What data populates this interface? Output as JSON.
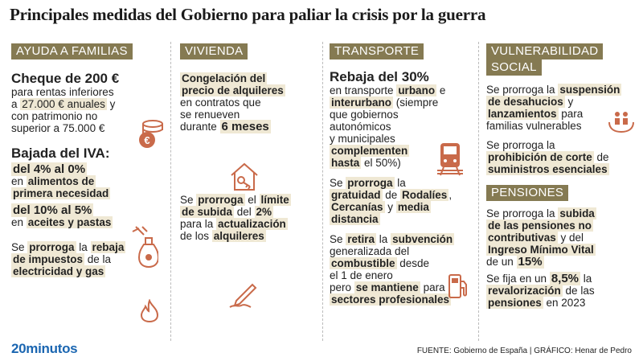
{
  "title": "Principales medidas del Gobierno para paliar la crisis por la guerra",
  "col1": {
    "header": "AYUDA A FAMILIAS",
    "cheque_title": "Cheque de 200 €",
    "cheque_l1": "para rentas inferiores",
    "cheque_l2a": "a ",
    "cheque_l2b": "27.000 € anuales",
    "cheque_l2c": " y",
    "cheque_l3": "con patrimonio no",
    "cheque_l4": "superior a 75.000 €",
    "iva_title": "Bajada del IVA:",
    "iva_a_hl": "del 4% al 0%",
    "iva_a_l2": "en ",
    "iva_a_l2b": "alimentos de",
    "iva_a_l3": "primera necesidad",
    "iva_b_hl": "del 10% al 5%",
    "iva_b_l2a": "en ",
    "iva_b_l2b": "aceites y pastas",
    "rebaja_l1a": "Se ",
    "rebaja_l1b": "prorroga",
    "rebaja_l1c": " la ",
    "rebaja_l1d": "rebaja",
    "rebaja_l2a": "de impuestos",
    "rebaja_l2b": " de la",
    "rebaja_l3": "electricidad y gas"
  },
  "col2": {
    "header": "VIVIENDA",
    "cong_l1": "Congelación del",
    "cong_l2": "precio de alquileres",
    "cong_l3": "en contratos que",
    "cong_l4": "se renueven",
    "cong_l5a": "durante ",
    "cong_l5b": "6 meses",
    "lim_l1a": "Se ",
    "lim_l1b": "prorroga",
    "lim_l1c": " el ",
    "lim_l1d": "límite",
    "lim_l2a": "de subida",
    "lim_l2b": " del ",
    "lim_l2c": "2%",
    "lim_l3a": "para la ",
    "lim_l3b": "actualización",
    "lim_l4a": "de los ",
    "lim_l4b": "alquileres"
  },
  "col3": {
    "header": "TRANSPORTE",
    "reb_title": "Rebaja del 30%",
    "reb_l1a": "en transporte ",
    "reb_l1b": "urbano",
    "reb_l1c": " e",
    "reb_l2a": "interurbano",
    "reb_l2b": " (siempre",
    "reb_l3": "que gobiernos",
    "reb_l4": "autonómicos",
    "reb_l5": "y municipales",
    "reb_l6": "complementen",
    "reb_l7a": "hasta",
    "reb_l7b": " el 50%)",
    "grat_l1a": "Se ",
    "grat_l1b": "prorroga",
    "grat_l1c": " la",
    "grat_l2a": "gratuidad",
    "grat_l2b": " de ",
    "grat_l2c": "Rodalíes",
    "grat_l2d": ",",
    "grat_l3a": "Cercanías",
    "grat_l3b": " y ",
    "grat_l3c": "media",
    "grat_l4": "distancia",
    "sub_l1a": "Se ",
    "sub_l1b": "retira",
    "sub_l1c": " la ",
    "sub_l1d": "subvención",
    "sub_l2": "generalizada del",
    "sub_l3a": "combustible",
    "sub_l3b": " desde",
    "sub_l4": "el 1 de enero",
    "sub_l5a": "pero ",
    "sub_l5b": "se mantiene",
    "sub_l5c": " para",
    "sub_l6": "sectores profesionales"
  },
  "col4": {
    "header_l1": "VULNERABILIDAD",
    "header_l2": "SOCIAL",
    "des_l1a": "Se prorroga la ",
    "des_l1b": "suspensión",
    "des_l2a": "de desahucios",
    "des_l2b": " y",
    "des_l3a": "lanzamientos",
    "des_l3b": " para",
    "des_l4": "familias vulnerables",
    "pro_l1": "Se prorroga la",
    "pro_l2": "prohibición de corte",
    "pro_l2b": " de",
    "pro_l3": "suministros esenciales",
    "header2": "PENSIONES",
    "pen_l1a": "Se prorroga la ",
    "pen_l1b": "subida",
    "pen_l2": "de las pensiones no",
    "pen_l3a": "contributivas",
    "pen_l3b": " y del",
    "pen_l4": "Ingreso Mínimo Vital",
    "pen_l5a": "de un ",
    "pen_l5b": "15%",
    "fij_l1a": "Se fija en un ",
    "fij_l1b": "8,5%",
    "fij_l1c": " la",
    "fij_l2a": "revalorización",
    "fij_l2b": " de las",
    "fij_l3a": "pensiones",
    "fij_l3b": " en 2023"
  },
  "footer": {
    "logo": "20minutos",
    "source": "FUENTE: Gobierno de España  |  GRÁFICO: Henar de Pedro"
  },
  "colors": {
    "header_bg": "#857a52",
    "highlight": "#efe8d4",
    "icon": "#c96a4a",
    "logo": "#1b66b1"
  },
  "icons": [
    "euro-coins-icon",
    "oil-bottle-icon",
    "flame-icon",
    "house-key-icon",
    "pen-signature-icon",
    "train-icon",
    "fuel-pump-icon",
    "family-hands-icon"
  ]
}
